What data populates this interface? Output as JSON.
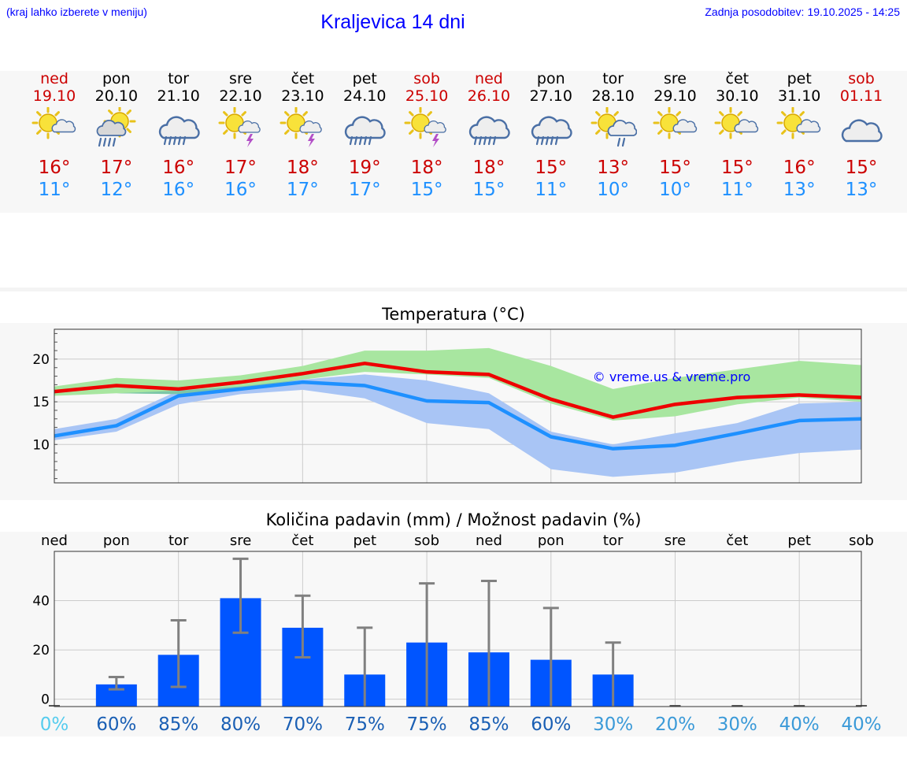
{
  "header": {
    "hint": "(kraj lahko izberete v meniju)",
    "title": "Kraljevica 14 dni",
    "updated_label": "Zadnja posodobitev:",
    "updated_value": "19.10.2025 - 14:25"
  },
  "days": [
    {
      "weekday": "ned",
      "date": "19.10",
      "icon": "sun-cloud-icon",
      "tmax": "16°",
      "tmin": "11°",
      "red": true
    },
    {
      "weekday": "pon",
      "date": "20.10",
      "icon": "sun-rain-icon",
      "tmax": "17°",
      "tmin": "12°",
      "red": false
    },
    {
      "weekday": "tor",
      "date": "21.10",
      "icon": "cloud-rain-icon",
      "tmax": "16°",
      "tmin": "16°",
      "red": false
    },
    {
      "weekday": "sre",
      "date": "22.10",
      "icon": "sun-storm-icon",
      "tmax": "17°",
      "tmin": "16°",
      "red": false
    },
    {
      "weekday": "čet",
      "date": "23.10",
      "icon": "sun-storm-icon",
      "tmax": "18°",
      "tmin": "17°",
      "red": false
    },
    {
      "weekday": "pet",
      "date": "24.10",
      "icon": "cloud-rain-icon",
      "tmax": "19°",
      "tmin": "17°",
      "red": false
    },
    {
      "weekday": "sob",
      "date": "25.10",
      "icon": "sun-storm-icon",
      "tmax": "18°",
      "tmin": "15°",
      "red": true
    },
    {
      "weekday": "ned",
      "date": "26.10",
      "icon": "cloud-rain-icon",
      "tmax": "18°",
      "tmin": "15°",
      "red": true
    },
    {
      "weekday": "pon",
      "date": "27.10",
      "icon": "cloud-rain-icon",
      "tmax": "15°",
      "tmin": "11°",
      "red": false
    },
    {
      "weekday": "tor",
      "date": "28.10",
      "icon": "sun-drizzle-icon",
      "tmax": "13°",
      "tmin": "10°",
      "red": false
    },
    {
      "weekday": "sre",
      "date": "29.10",
      "icon": "sun-cloud-icon",
      "tmax": "15°",
      "tmin": "10°",
      "red": false
    },
    {
      "weekday": "čet",
      "date": "30.10",
      "icon": "sun-cloud-icon",
      "tmax": "15°",
      "tmin": "11°",
      "red": false
    },
    {
      "weekday": "pet",
      "date": "31.10",
      "icon": "sun-cloud-icon",
      "tmax": "16°",
      "tmin": "13°",
      "red": false
    },
    {
      "weekday": "sob",
      "date": "01.11",
      "icon": "cloud-icon",
      "tmax": "15°",
      "tmin": "13°",
      "red": true
    }
  ],
  "colors": {
    "max_line": "#ee0000",
    "min_line": "#1e90ff",
    "max_band": "#a8e6a0",
    "min_band": "#a9c5f5",
    "overlap_band": "#7cc6a8",
    "bar": "#0055ff",
    "error": "#808080",
    "blue_text": "#0000ff"
  },
  "chart_data": [
    {
      "type": "line",
      "title": "Temperatura (°C)",
      "watermark": "© vreme.us & vreme.pro",
      "ylim": [
        5.5,
        23.5
      ],
      "yticks": [
        10,
        15,
        20
      ],
      "x": [
        0,
        1,
        2,
        3,
        4,
        5,
        6,
        7,
        8,
        9,
        10,
        11,
        12,
        13
      ],
      "series": [
        {
          "name": "max",
          "values": [
            16.2,
            16.9,
            16.5,
            17.3,
            18.3,
            19.5,
            18.5,
            18.2,
            15.3,
            13.2,
            14.7,
            15.5,
            15.8,
            15.5
          ],
          "band_low": [
            15.7,
            16.0,
            15.9,
            16.5,
            17.6,
            18.5,
            18.2,
            17.8,
            14.8,
            12.8,
            13.3,
            14.7,
            15.5,
            15.0
          ],
          "band_high": [
            16.8,
            17.8,
            17.5,
            18.1,
            19.2,
            21.0,
            21.0,
            21.3,
            19.2,
            16.5,
            17.8,
            18.8,
            19.8,
            19.3
          ]
        },
        {
          "name": "min",
          "values": [
            11.0,
            12.2,
            15.7,
            16.5,
            17.3,
            16.9,
            15.1,
            14.9,
            10.9,
            9.5,
            9.9,
            11.3,
            12.8,
            13.0
          ],
          "band_low": [
            10.5,
            11.5,
            14.7,
            15.9,
            16.4,
            15.4,
            12.5,
            11.8,
            7.1,
            6.2,
            6.7,
            8.0,
            9.0,
            9.4
          ],
          "band_high": [
            11.8,
            13.0,
            16.3,
            16.8,
            17.6,
            18.2,
            17.5,
            16.0,
            11.5,
            10.0,
            11.3,
            12.5,
            14.8,
            15.0
          ]
        }
      ]
    },
    {
      "type": "bar",
      "title": "Količina padavin (mm) / Možnost padavin (%)",
      "categories": [
        "ned",
        "pon",
        "tor",
        "sre",
        "čet",
        "pet",
        "sob",
        "ned",
        "pon",
        "tor",
        "sre",
        "čet",
        "pet",
        "sob"
      ],
      "values": [
        0,
        6,
        18,
        41,
        29,
        10,
        23,
        19,
        16,
        10,
        0,
        0,
        0,
        0
      ],
      "err_low": [
        0,
        4,
        5,
        27,
        17,
        0,
        0,
        0,
        0,
        0,
        0,
        0,
        0,
        0
      ],
      "err_high": [
        0,
        9,
        32,
        57,
        42,
        29,
        47,
        48,
        37,
        23,
        0,
        0,
        0,
        0
      ],
      "chance": [
        "0%",
        "60%",
        "85%",
        "80%",
        "70%",
        "75%",
        "75%",
        "85%",
        "60%",
        "30%",
        "20%",
        "30%",
        "40%",
        "40%"
      ],
      "chance_colors": [
        "#55ccee",
        "#1a5fb4",
        "#1a5fb4",
        "#1a5fb4",
        "#1a5fb4",
        "#1a5fb4",
        "#1a5fb4",
        "#1a5fb4",
        "#1a5fb4",
        "#3b9ad8",
        "#3b9ad8",
        "#3b9ad8",
        "#3b9ad8",
        "#3b9ad8"
      ],
      "ylim": [
        -3,
        60
      ],
      "yticks": [
        0,
        20,
        40
      ]
    }
  ]
}
